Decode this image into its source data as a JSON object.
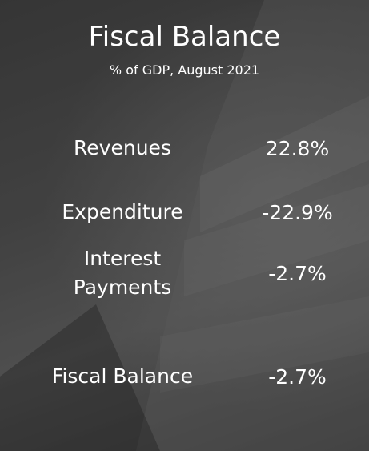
{
  "title": "Fiscal Balance",
  "subtitle": "% of GDP, August 2021",
  "rows": [
    {
      "label": "Revenues",
      "value": "22.8%"
    },
    {
      "label": "Expenditure",
      "value": "-22.9%"
    },
    {
      "label": "Interest Payments",
      "value": "-2.7%"
    }
  ],
  "total": {
    "label": "Fiscal Balance",
    "value": "-2.7%"
  }
}
